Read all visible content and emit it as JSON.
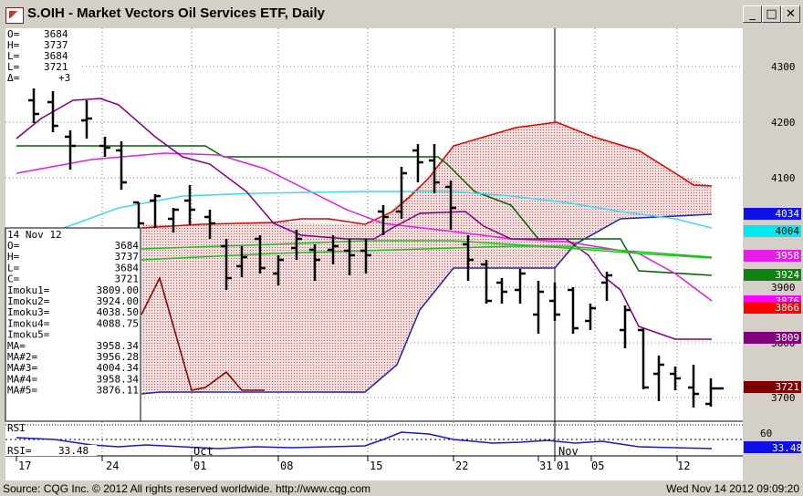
{
  "window": {
    "title": "S.OIH - Market Vectors Oil Services ETF, Daily",
    "minimize_glyph": "_",
    "maximize_glyph": "□",
    "close_glyph": "✕"
  },
  "header_quote": [
    {
      "label": "O=",
      "value": "3684"
    },
    {
      "label": "H=",
      "value": "3737"
    },
    {
      "label": "L=",
      "value": "3684"
    },
    {
      "label": "L=",
      "value": "3721"
    },
    {
      "label": "Δ=",
      "value": "+3"
    }
  ],
  "data_box": {
    "date": "14 Nov 12",
    "rows": [
      {
        "label": "O=",
        "value": "3684"
      },
      {
        "label": "H=",
        "value": "3737"
      },
      {
        "label": "L=",
        "value": "3684"
      },
      {
        "label": "C=",
        "value": "3721"
      },
      {
        "label": "Imoku1=",
        "value": "3809.00"
      },
      {
        "label": "Imoku2=",
        "value": "3924.00"
      },
      {
        "label": "Imoku3=",
        "value": "4038.50"
      },
      {
        "label": "Imoku4=",
        "value": "4088.75"
      },
      {
        "label": "Imoku5=",
        "value": ""
      },
      {
        "label": "MA=",
        "value": "3958.34"
      },
      {
        "label": "MA#2=",
        "value": "3956.28"
      },
      {
        "label": "MA#3=",
        "value": "4004.34"
      },
      {
        "label": "MA#4=",
        "value": "3958.34"
      },
      {
        "label": "MA#5=",
        "value": "3876.11"
      }
    ]
  },
  "price_axis": [
    "4300",
    "4200",
    "4100",
    "3900",
    "3800",
    "3700"
  ],
  "price_badges": [
    {
      "value": "4034",
      "bg": "#1010e8",
      "fg": "#ffffff"
    },
    {
      "value": "4004",
      "bg": "#00e8f0",
      "fg": "#000000"
    },
    {
      "value": "3958",
      "bg": "#e81ce8",
      "fg": "#ffffff"
    },
    {
      "value": "3924",
      "bg": "#108010",
      "fg": "#ffffff"
    },
    {
      "value": "3876",
      "bg": "#ff00ff",
      "fg": "#ffffff"
    },
    {
      "value": "3866",
      "bg": "#ff0000",
      "fg": "#ffffff"
    },
    {
      "value": "3809",
      "bg": "#800080",
      "fg": "#ffffff"
    },
    {
      "value": "3721",
      "bg": "#800000",
      "fg": "#ffffff"
    }
  ],
  "rsi": {
    "panel_label": "RSI",
    "value_label": "RSI=",
    "value": "33.48",
    "axis_tick": "60",
    "badge": "33.48"
  },
  "date_axis": {
    "days": [
      "17",
      "24",
      "01",
      "08",
      "15",
      "22",
      "31",
      "01",
      "05",
      "12"
    ],
    "months": [
      "Oct",
      "Nov"
    ]
  },
  "status": {
    "left": "Source: CQG Inc. © 2012 All rights reserved worldwide. http://www.cqg.com",
    "right": "Wed Nov 14 2012 09:09:20"
  },
  "colors": {
    "tenkan": "#e00000",
    "kijun": "#006400",
    "senkou_b": "#2020c0",
    "lagging": "#800000",
    "ma_magenta": "#e020e0",
    "ma_cyan": "#40d8f0",
    "ma_purple": "#800080",
    "ma_green": "#20c020",
    "rsi": "#1818d0"
  }
}
